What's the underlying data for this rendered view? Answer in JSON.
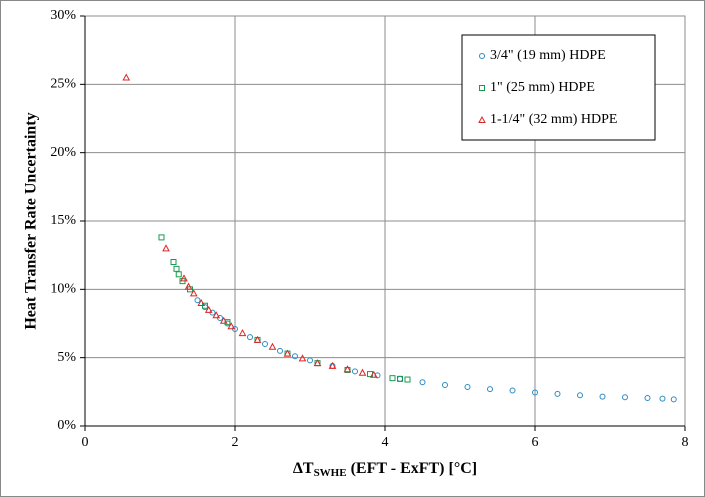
{
  "chart_data": {
    "type": "scatter",
    "ylabel": "Heat Transfer Rate Uncertainty",
    "xlabel": {
      "main": "ΔT",
      "sub": "SWHE",
      "rest": " (EFT - ExFT) [°C]"
    },
    "xlim": [
      0,
      8
    ],
    "xticks": [
      0,
      2,
      4,
      6,
      8
    ],
    "ylim": [
      0,
      30
    ],
    "yticks": [
      {
        "value": 0,
        "label": "0%"
      },
      {
        "value": 5,
        "label": "5%"
      },
      {
        "value": 10,
        "label": "10%"
      },
      {
        "value": 15,
        "label": "15%"
      },
      {
        "value": 20,
        "label": "20%"
      },
      {
        "value": 25,
        "label": "25%"
      },
      {
        "value": 30,
        "label": "30%"
      }
    ],
    "grid": true,
    "legend": "upper right",
    "series": [
      {
        "name": "3/4\"  (19 mm) HDPE",
        "color": "#2a8cc4",
        "marker": "circle",
        "x": [
          1.5,
          1.6,
          1.7,
          1.8,
          1.9,
          2.0,
          2.2,
          2.4,
          2.6,
          2.8,
          3.0,
          3.3,
          3.6,
          3.9,
          4.2,
          4.5,
          4.8,
          5.1,
          5.4,
          5.7,
          6.0,
          6.3,
          6.6,
          6.9,
          7.2,
          7.5,
          7.7,
          7.85
        ],
        "values": [
          9.2,
          8.7,
          8.3,
          7.9,
          7.5,
          7.1,
          6.5,
          6.0,
          5.5,
          5.1,
          4.8,
          4.4,
          4.0,
          3.7,
          3.45,
          3.2,
          3.0,
          2.85,
          2.7,
          2.6,
          2.45,
          2.35,
          2.25,
          2.15,
          2.1,
          2.05,
          2.0,
          1.95
        ]
      },
      {
        "name": "1\"  (25 mm) HDPE",
        "color": "#1a9a50",
        "marker": "square",
        "x": [
          1.02,
          1.18,
          1.22,
          1.25,
          1.3,
          1.4,
          1.6,
          1.9,
          2.3,
          2.7,
          3.1,
          3.5,
          3.8,
          4.1,
          4.2,
          4.3
        ],
        "values": [
          13.8,
          12.0,
          11.5,
          11.1,
          10.6,
          10.0,
          8.8,
          7.6,
          6.3,
          5.3,
          4.6,
          4.1,
          3.8,
          3.5,
          3.45,
          3.4
        ]
      },
      {
        "name": "1-1/4\"  (32 mm) HDPE",
        "color": "#e02424",
        "marker": "triangle",
        "x": [
          0.55,
          1.08,
          1.32,
          1.38,
          1.45,
          1.55,
          1.65,
          1.75,
          1.85,
          1.95,
          2.1,
          2.3,
          2.5,
          2.7,
          2.9,
          3.1,
          3.3,
          3.5,
          3.7,
          3.85
        ],
        "values": [
          25.5,
          13.0,
          10.8,
          10.2,
          9.7,
          9.0,
          8.5,
          8.1,
          7.7,
          7.3,
          6.8,
          6.3,
          5.8,
          5.3,
          4.95,
          4.6,
          4.4,
          4.15,
          3.9,
          3.75
        ]
      }
    ]
  }
}
